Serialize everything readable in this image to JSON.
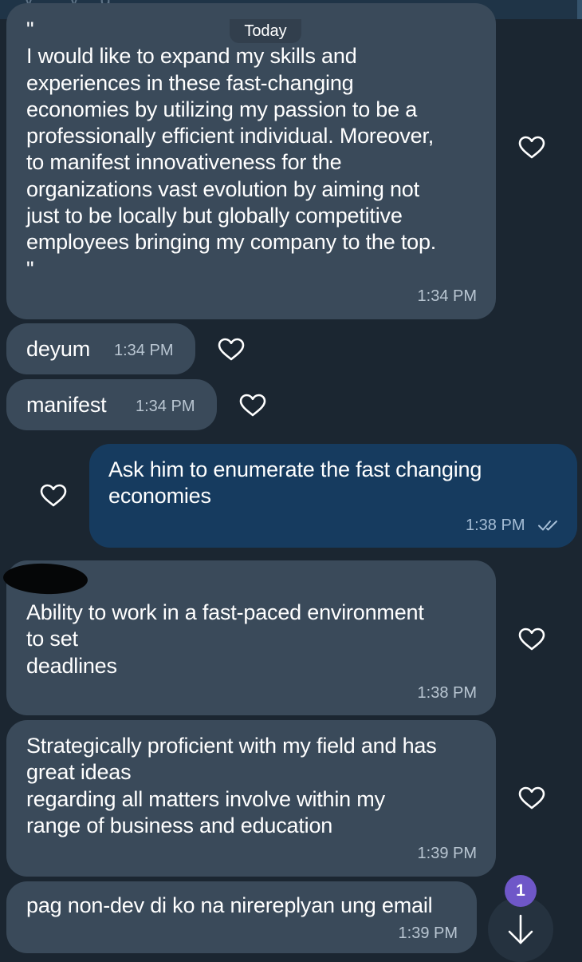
{
  "header": {
    "partial_title": "y...     ...y ...g..."
  },
  "date_separator": "Today",
  "messages": [
    {
      "direction": "in",
      "text": "\"\nI would like to expand my skills and\nexperiences in these fast-changing\neconomies by utilizing my passion to be a\nprofessionally efficient individual. Moreover,\nto manifest innovativeness for the\norganizations vast evolution by aiming not\njust to be locally but globally competitive\nemployees bringing my company to the top.\n\"",
      "time": "1:34 PM"
    },
    {
      "direction": "in",
      "text": "deyum",
      "time": "1:34 PM"
    },
    {
      "direction": "in",
      "text": "manifest",
      "time": "1:34 PM"
    },
    {
      "direction": "out",
      "text": "Ask him to enumerate the fast changing\neconomies",
      "time": "1:38 PM",
      "status": "read"
    },
    {
      "direction": "in",
      "text": "Ability to work in a fast-paced environment\nto set\ndeadlines",
      "time": "1:38 PM"
    },
    {
      "direction": "in",
      "text": "Strategically proficient with my field and has\ngreat ideas\nregarding all matters involve within my\nrange of business and education",
      "time": "1:39 PM"
    },
    {
      "direction": "in",
      "text": "pag non-dev di ko na nirereplyan ung email",
      "time": "1:39 PM"
    }
  ],
  "scroll_down": {
    "unread_count": "1",
    "icon": "arrow-down-icon"
  },
  "icons": {
    "reaction": "heart-outline-icon",
    "read_receipt": "double-check-icon"
  },
  "colors": {
    "background": "#1b2631",
    "incoming_bubble": "#3a4a5a",
    "outgoing_bubble": "#163b5f",
    "badge": "#6f57c8"
  }
}
